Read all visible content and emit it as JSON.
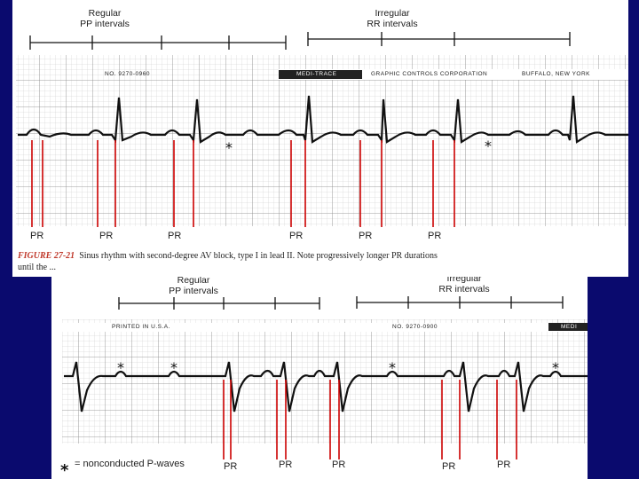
{
  "top_panel": {
    "left_header": [
      "Regular",
      "PP intervals"
    ],
    "right_header": [
      "Irregular",
      "RR intervals"
    ],
    "paper_number": "NO. 9270-0960",
    "brand_logo": "MEDI-TRACE",
    "brand_company": "GRAPHIC CONTROLS CORPORATION",
    "brand_city": "BUFFALO, NEW YORK",
    "pr_labels": [
      "PR",
      "PR",
      "PR",
      "PR",
      "PR",
      "PR"
    ],
    "figure_label": "FIGURE 27-21",
    "caption": "Sinus rhythm with second-degree AV block, type I in lead II. Note progressively longer PR durations",
    "caption_line2": "until the ..."
  },
  "bottom_panel": {
    "left_header": [
      "Regular",
      "PP intervals"
    ],
    "right_header": [
      "Irregular",
      "RR intervals"
    ],
    "printed_in": "PRINTED IN U.S.A.",
    "paper_number": "NO. 9270-0900",
    "brand_logo": "MEDI",
    "pr_labels": [
      "PR",
      "PR",
      "PR",
      "PR",
      "PR"
    ],
    "legend_text": "= nonconducted P-waves"
  },
  "colors": {
    "background": "#0a0a6e",
    "pr_markers": "#cc0000",
    "trace": "#111111"
  }
}
